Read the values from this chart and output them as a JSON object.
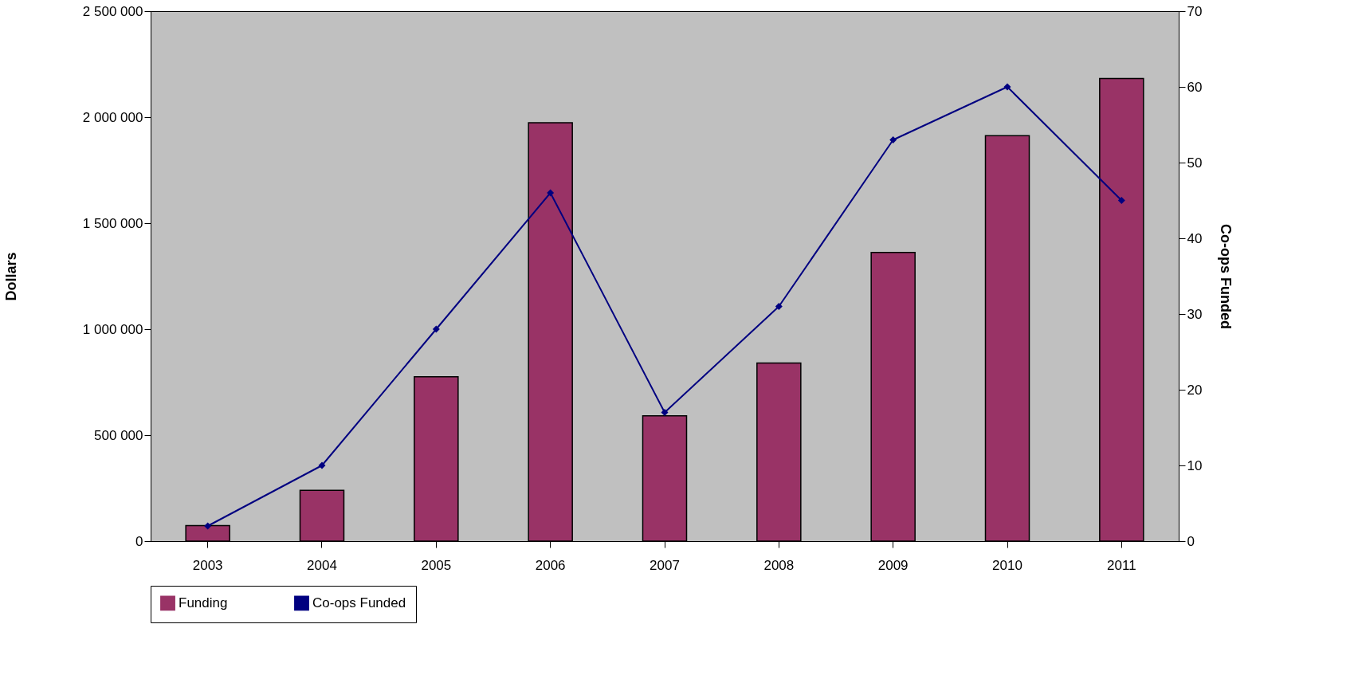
{
  "chart_data": {
    "type": "bar",
    "categories": [
      "2003",
      "2004",
      "2005",
      "2006",
      "2007",
      "2008",
      "2009",
      "2010",
      "2011"
    ],
    "ylabel": "Dollars",
    "y2label": "Co-ops Funded",
    "ylim": [
      0,
      2500000
    ],
    "yticks": [
      {
        "value": 0,
        "label": "0"
      },
      {
        "value": 500000,
        "label": "500 000"
      },
      {
        "value": 1000000,
        "label": "1 000 000"
      },
      {
        "value": 1500000,
        "label": "1 500 000"
      },
      {
        "value": 2000000,
        "label": "2 000 000"
      },
      {
        "value": 2500000,
        "label": "2 500 000"
      }
    ],
    "y2lim": [
      0,
      70
    ],
    "y2ticks": [
      0,
      10,
      20,
      30,
      40,
      50,
      60,
      70
    ],
    "series": [
      {
        "name": "Funding",
        "color": "#993366",
        "values": [
          73000,
          240000,
          775000,
          1974000,
          591000,
          840000,
          1362000,
          1913000,
          2182000
        ]
      },
      {
        "name": "Co-ops Funded",
        "type": "line",
        "axis": "y2",
        "color": "#000080",
        "marker": "diamond",
        "values": [
          2,
          10,
          28,
          46,
          17,
          31,
          53,
          60,
          45
        ]
      }
    ],
    "grid": false,
    "legend": "bottom"
  }
}
